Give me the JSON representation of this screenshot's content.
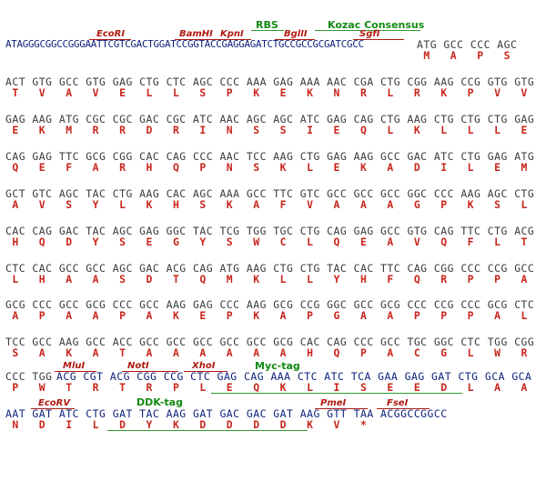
{
  "header": {
    "features": {
      "rbs": "RBS",
      "kozac": "Kozac Consensus"
    },
    "sites": {
      "ecori": "EcoRI",
      "bamhi": "BamHI",
      "kpni": "KpnI",
      "bglii": "BglII",
      "sgfi": "SgfI"
    },
    "dna_line": "ATAGGGCGGCCGGGAATTCGTCGACTGGATCCGGTACCGAGGAGATCTGCCGCCGCGATCGCC",
    "dna_tail": "ATG GCC CCC AGC",
    "aa_tail": " M   A   P   S"
  },
  "rows": [
    {
      "dna": "ACT GTG GCC GTG GAG CTG CTC AGC CCC AAA GAG AAA AAC CGA CTG CGG AAG CCG GTG GTG",
      "aa": " T   V   A   V   E   L   L   S   P   K   E   K   N   R   L   R   K   P   V   V"
    },
    {
      "dna": "GAG AAG ATG CGC CGC GAC CGC ATC AAC AGC AGC ATC GAG CAG CTG AAG CTG CTG CTG GAG",
      "aa": " E   K   M   R   R   D   R   I   N   S   S   I   E   Q   L   K   L   L   L   E"
    },
    {
      "dna": "CAG GAG TTC GCG CGG CAC CAG CCC AAC TCC AAG CTG GAG AAG GCC GAC ATC CTG GAG ATG",
      "aa": " Q   E   F   A   R   H   Q   P   N   S   K   L   E   K   A   D   I   L   E   M"
    },
    {
      "dna": "GCT GTC AGC TAC CTG AAG CAC AGC AAA GCC TTC GTC GCC GCC GCC GGC CCC AAG AGC CTG",
      "aa": " A   V   S   Y   L   K   H   S   K   A   F   V   A   A   A   G   P   K   S   L"
    },
    {
      "dna": "CAC CAG GAC TAC AGC GAG GGC TAC TCG TGG TGC CTG CAG GAG GCC GTG CAG TTC CTG ACG",
      "aa": " H   Q   D   Y   S   E   G   Y   S   W   C   L   Q   E   A   V   Q   F   L   T"
    },
    {
      "dna": "CTC CAC GCC GCC AGC GAC ACG CAG ATG AAG CTG CTG TAC CAC TTC CAG CGG CCC CCG GCC",
      "aa": " L   H   A   A   S   D   T   Q   M   K   L   L   Y   H   F   Q   R   P   P   A"
    },
    {
      "dna": "GCG CCC GCC GCG CCC GCC AAG GAG CCC AAG GCG CCG GGC GCC GCG CCC CCG CCC GCG CTC",
      "aa": " A   P   A   A   P   A   K   E   P   K   A   P   G   A   A   P   P   P   A   L"
    },
    {
      "dna": "TCC GCC AAG GCC ACC GCC GCC GCC GCC GCC GCG CAC CAG CCC GCC TGC GGC CTC TGG CGG",
      "aa": " S   A   K   A   T   A   A   A   A   A   A   H   Q   P   A   C   G   L   W   R"
    }
  ],
  "row_myc": {
    "sites": {
      "mlui": "MluI",
      "noti": "NotI",
      "xhoi": "XhoI"
    },
    "feature": "Myc-tag",
    "dna_a": "CCC TGG ",
    "dna_b": "ACG CGT ACG CGG CCG CTC GAG CAG AAA CTC ATC TCA GAA GAG GAT CTG GCA GCA",
    "aa": " P   W   T   R   T   R   P   L   E   Q   K   L   I   S   E   E   D   L   A   A"
  },
  "row_ddk": {
    "sites": {
      "ecorv": "EcoRV",
      "pmei": "PmeI",
      "fsei": "FseI"
    },
    "feature": "DDK-tag",
    "dna": "AAT GAT ATC CTG GAT TAC AAG GAT GAC GAC GAT AAG GTT TAA ACGGCCGGCC",
    "aa": " N   D   I   L   D   Y   K   D   D   D   D   K   V   *"
  }
}
